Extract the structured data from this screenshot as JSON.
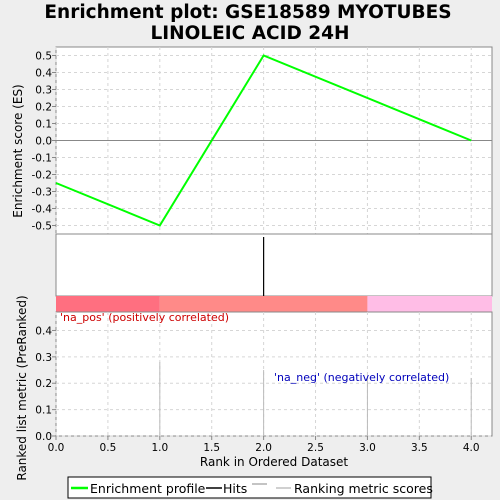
{
  "chart_data": {
    "type": "line",
    "title_line1": "Enrichment plot: GSE18589 MYOTUBES",
    "title_line2": "LINOLEIC ACID 24H",
    "xlabel": "Rank in Ordered Dataset",
    "xlim": [
      0,
      4.2
    ],
    "x_ticks": [
      "0.0",
      "0.5",
      "1.0",
      "1.5",
      "2.0",
      "2.5",
      "3.0",
      "3.5",
      "4.0"
    ],
    "es_panel": {
      "ylabel": "Enrichment score (ES)",
      "ylim": [
        -0.55,
        0.55
      ],
      "y_ticks": [
        "0.5",
        "0.4",
        "0.3",
        "0.2",
        "0.1",
        "0.0",
        "-0.1",
        "-0.2",
        "-0.3",
        "-0.4",
        "-0.5"
      ],
      "series": [
        {
          "name": "Enrichment profile",
          "color": "#00ff00",
          "x": [
            0,
            1,
            2,
            4
          ],
          "y": [
            -0.25,
            -0.5,
            0.5,
            0.0
          ]
        }
      ]
    },
    "hits": [
      2
    ],
    "heatmap_bands": [
      {
        "from": 0,
        "to": 1,
        "color": "#ff6f80"
      },
      {
        "from": 1,
        "to": 3,
        "color": "#ff8a88"
      },
      {
        "from": 3,
        "to": 4.2,
        "color": "#ffbde6"
      }
    ],
    "metric_panel": {
      "ylabel": "Ranked list metric (PreRanked)",
      "ylim": [
        0,
        0.47
      ],
      "y_ticks": [
        "0.4",
        "0.3",
        "0.2",
        "0.1",
        "0.0"
      ],
      "x": [
        1,
        2,
        3,
        4
      ],
      "values": [
        0.28,
        0.25,
        0.22,
        0.22
      ],
      "pos_label": "'na_pos' (positively correlated)",
      "pos_color": "#cc0000",
      "neg_label": "'na_neg' (negatively correlated)",
      "neg_color": "#0000bb"
    },
    "legend": {
      "items": [
        {
          "label": "Enrichment profile",
          "color": "#00ff00"
        },
        {
          "label": "Hits",
          "color": "#000000"
        },
        {
          "label": "Ranking metric scores",
          "color": "#c0c0c0"
        }
      ]
    }
  }
}
